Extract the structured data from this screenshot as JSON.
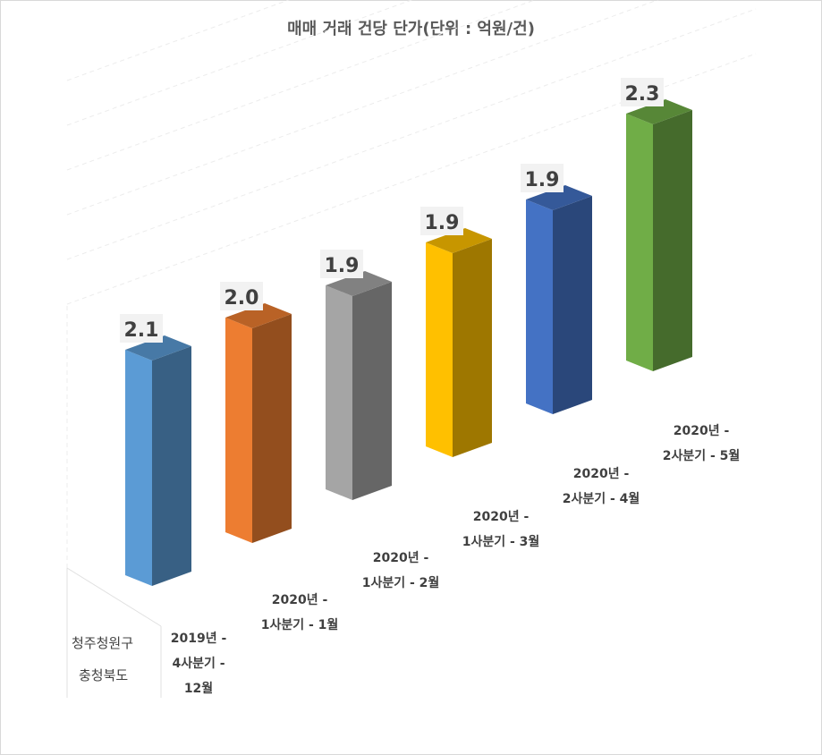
{
  "chart_data": {
    "type": "bar",
    "title": "매매 거래 건당 단가(단위 : 억원/건)",
    "categories": [
      [
        "2019년 -",
        "4사분기 -",
        "12월"
      ],
      [
        "2020년 -",
        "1사분기 - 1월"
      ],
      [
        "2020년 -",
        "1사분기 - 2월"
      ],
      [
        "2020년 -",
        "1사분기 - 3월"
      ],
      [
        "2020년 -",
        "2사분기 - 4월"
      ],
      [
        "2020년 -",
        "2사분기 - 5월"
      ]
    ],
    "series_rows": [
      "청주청원구",
      "충청북도"
    ],
    "values": [
      2.1,
      2.0,
      1.9,
      1.9,
      1.9,
      2.3
    ],
    "value_labels": [
      "2.1",
      "2.0",
      "1.9",
      "1.9",
      "1.9",
      "2.3"
    ],
    "colors": [
      "#5b9bd5",
      "#ed7d31",
      "#a5a5a5",
      "#ffc000",
      "#4472c4",
      "#70ad47"
    ],
    "legend": "none",
    "grid": true
  }
}
